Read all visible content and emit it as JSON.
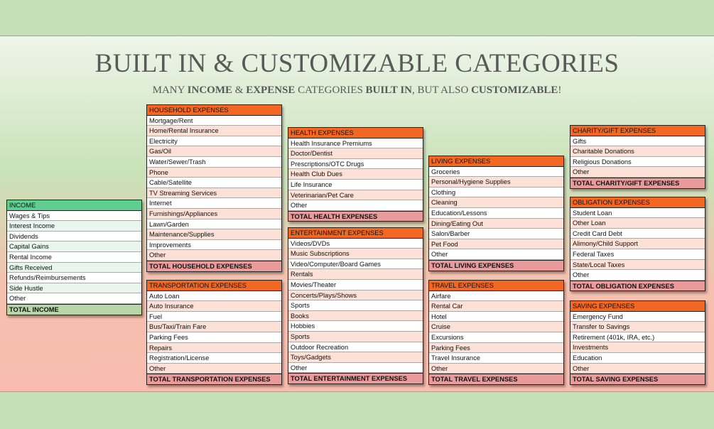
{
  "title": "BUILT IN & CUSTOMIZABLE CATEGORIES",
  "subtitle": {
    "p1": "MANY ",
    "b1": "INCOME",
    "p2": " & ",
    "b2": "EXPENSE",
    "p3": " CATEGORIES ",
    "b3": "BUILT IN",
    "p4": ", BUT ALSO ",
    "b4": "CUSTOMIZABLE",
    "p5": "!"
  },
  "colors": {
    "income_header": "#5ecf91",
    "expense_header": "#f26722",
    "expense_total": "#e99b9b",
    "income_total": "#b7d7a8"
  },
  "tables": [
    {
      "id": "income",
      "header": "INCOME",
      "items": [
        "Wages & Tips",
        "Interest Income",
        "Dividends",
        "Capital Gains",
        "Rental Income",
        "Gifts Received",
        "Refunds/Reimbursements",
        "Side Hustle",
        "Other"
      ],
      "total": "TOTAL INCOME"
    },
    {
      "id": "household",
      "header": "HOUSEHOLD EXPENSES",
      "items": [
        "Mortgage/Rent",
        "Home/Rental Insurance",
        "Electricity",
        "Gas/Oil",
        "Water/Sewer/Trash",
        "Phone",
        "Cable/Satellite",
        "TV Streaming Services",
        "Internet",
        "Furnishings/Appliances",
        "Lawn/Garden",
        "Maintenance/Supplies",
        "Improvements",
        "Other"
      ],
      "total": "TOTAL HOUSEHOLD EXPENSES"
    },
    {
      "id": "transportation",
      "header": "TRANSPORTATION EXPENSES",
      "items": [
        "Auto Loan",
        "Auto Insurance",
        "Fuel",
        "Bus/Taxi/Train Fare",
        "Parking Fees",
        "Repairs",
        "Registration/License",
        "Other"
      ],
      "total": "TOTAL TRANSPORTATION EXPENSES"
    },
    {
      "id": "health",
      "header": "HEALTH EXPENSES",
      "items": [
        "Health Insurance Premiums",
        "Doctor/Dentist",
        "Prescriptions/OTC Drugs",
        "Health Club Dues",
        "Life Insurance",
        "Veterinarian/Pet Care",
        "Other"
      ],
      "total": "TOTAL HEALTH EXPENSES"
    },
    {
      "id": "entertainment",
      "header": "ENTERTAINMENT EXPENSES",
      "items": [
        "Videos/DVDs",
        "Music Subscriptions",
        "Video/Computer/Board Games",
        "Rentals",
        "Movies/Theater",
        "Concerts/Plays/Shows",
        "Sports",
        "Books",
        "Hobbies",
        "Sports",
        "Outdoor Recreation",
        "Toys/Gadgets",
        "Other"
      ],
      "total": "TOTAL ENTERTAINMENT EXPENSES"
    },
    {
      "id": "living",
      "header": "LIVING EXPENSES",
      "items": [
        "Groceries",
        "Personal/Hygiene Supplies",
        "Clothing",
        "Cleaning",
        "Education/Lessons",
        "Dining/Eating Out",
        "Salon/Barber",
        "Pet Food",
        "Other"
      ],
      "total": "TOTAL LIVING EXPENSES"
    },
    {
      "id": "travel",
      "header": "TRAVEL EXPENSES",
      "items": [
        "Airfare",
        "Rental Car",
        "Hotel",
        "Cruise",
        "Excursions",
        "Parking Fees",
        "Travel Insurance",
        "Other"
      ],
      "total": "TOTAL TRAVEL EXPENSES"
    },
    {
      "id": "charity",
      "header": "CHARITY/GIFT EXPENSES",
      "items": [
        "Gifts",
        "Charitable Donations",
        "Religious Donations",
        "Other"
      ],
      "total": "TOTAL CHARITY/GIFT EXPENSES"
    },
    {
      "id": "obligation",
      "header": "OBLIGATION EXPENSES",
      "items": [
        "Student Loan",
        "Other Loan",
        "Credit Card Debt",
        "Alimony/Child Support",
        "Federal Taxes",
        "State/Local Taxes",
        "Other"
      ],
      "total": "TOTAL OBLIGATION EXPENSES"
    },
    {
      "id": "saving",
      "header": "SAVING EXPENSES",
      "items": [
        "Emergency Fund",
        "Transfer to Savings",
        "Retirement (401k, IRA, etc.)",
        "Investments",
        "Education",
        "Other"
      ],
      "total": "TOTAL SAVING EXPENSES"
    }
  ]
}
